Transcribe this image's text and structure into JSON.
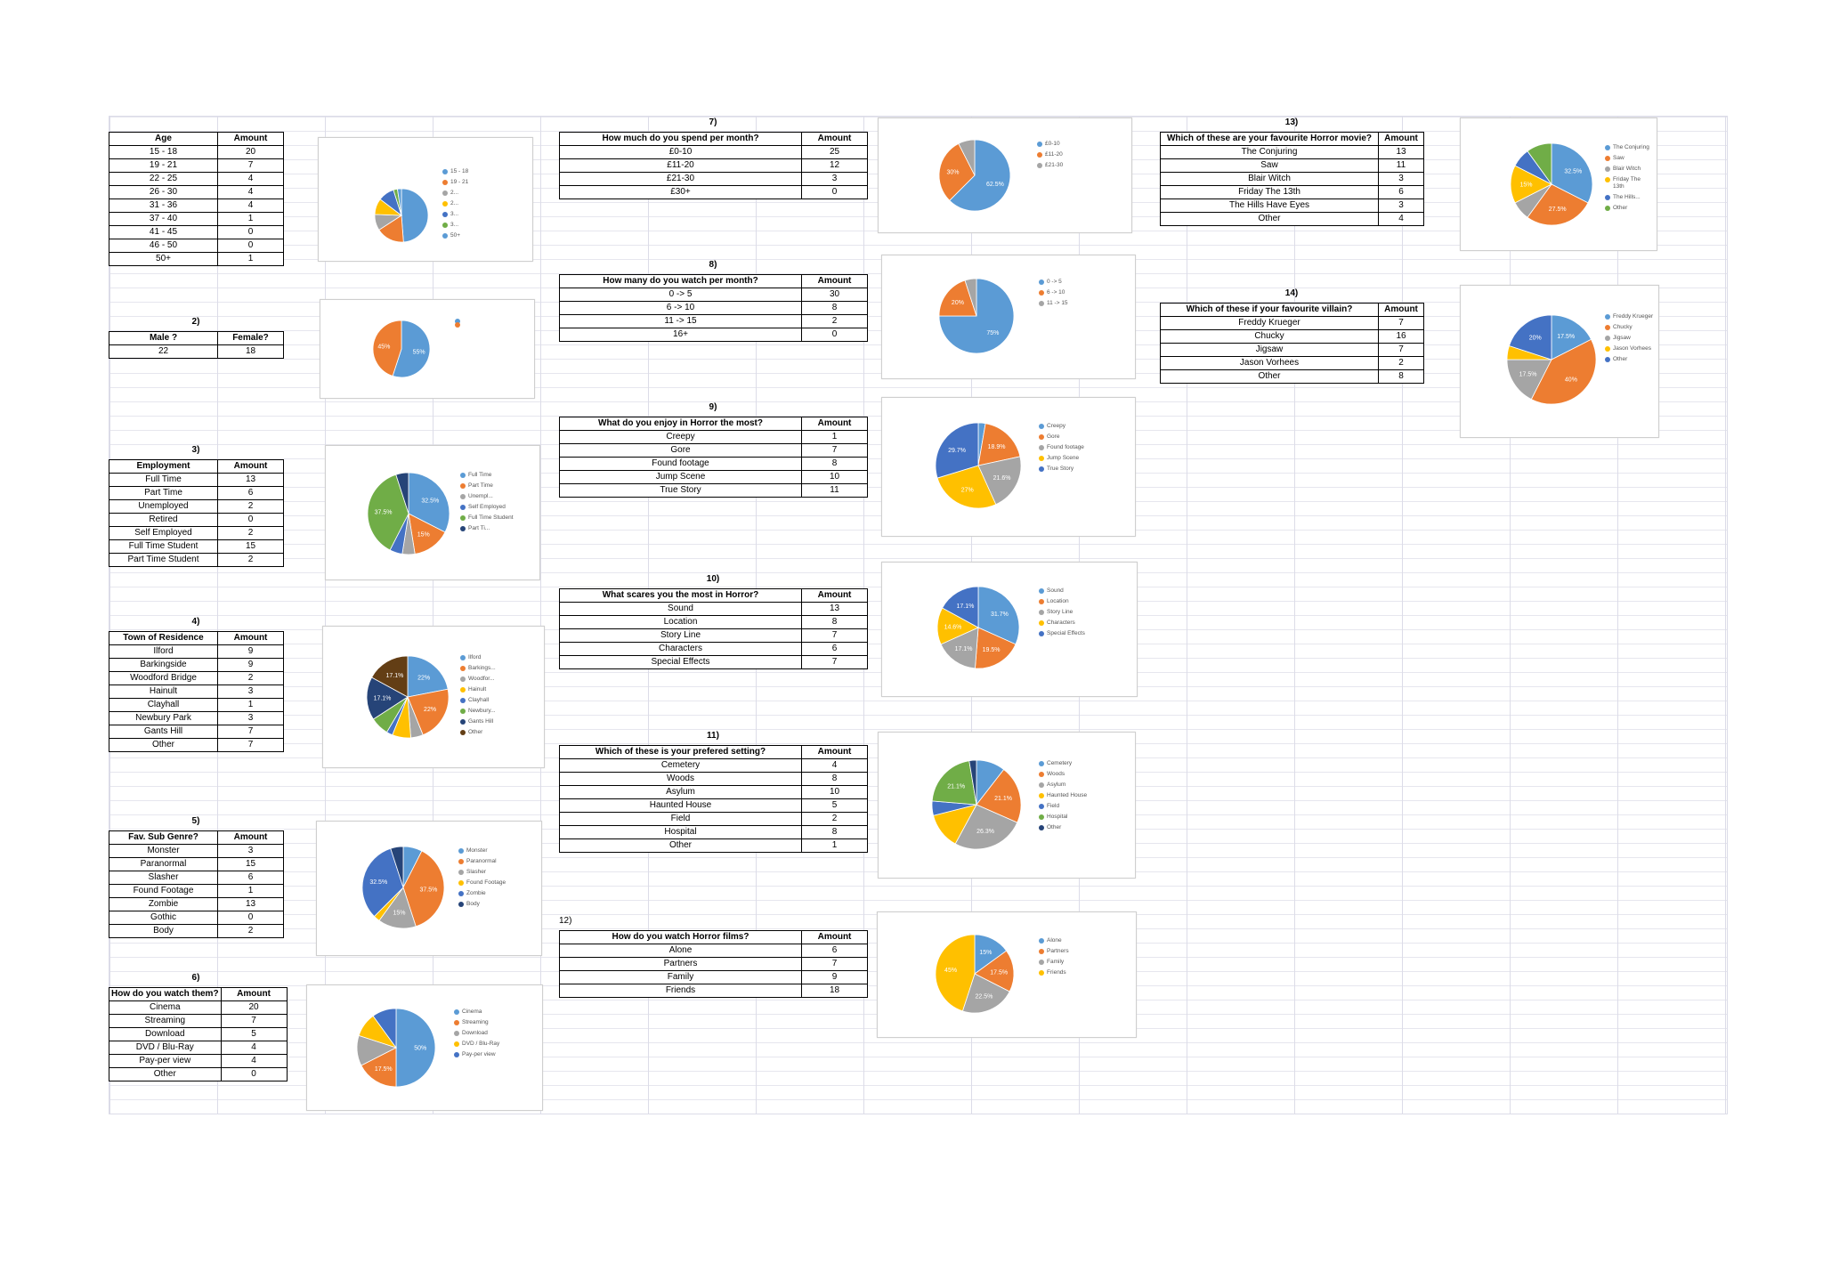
{
  "colors": [
    "#5b9bd5",
    "#ed7d31",
    "#a5a5a5",
    "#ffc000",
    "#4472c4",
    "#70ad47",
    "#264478",
    "#633e15"
  ],
  "sections": [
    {
      "key": "age",
      "label": "",
      "headers": [
        "Age",
        "Amount"
      ],
      "rows": [
        [
          "15 - 18",
          "20"
        ],
        [
          "19 - 21",
          "7"
        ],
        [
          "22 - 25",
          "4"
        ],
        [
          "26 - 30",
          "4"
        ],
        [
          "31 - 36",
          "4"
        ],
        [
          "37 - 40",
          "1"
        ],
        [
          "41 - 45",
          "0"
        ],
        [
          "46 - 50",
          "0"
        ],
        [
          "50+",
          "1"
        ]
      ]
    },
    {
      "key": "gender",
      "label": "2)",
      "headers": [
        "Male ?",
        "Female?"
      ],
      "rows": [
        [
          "22",
          "18"
        ]
      ]
    },
    {
      "key": "employment",
      "label": "3)",
      "headers": [
        "Employment",
        "Amount"
      ],
      "rows": [
        [
          "Full Time",
          "13"
        ],
        [
          "Part Time",
          "6"
        ],
        [
          "Unemployed",
          "2"
        ],
        [
          "Retired",
          "0"
        ],
        [
          "Self Employed",
          "2"
        ],
        [
          "Full Time Student",
          "15"
        ],
        [
          "Part Time Student",
          "2"
        ]
      ]
    },
    {
      "key": "town",
      "label": "4)",
      "headers": [
        "Town of Residence",
        "Amount"
      ],
      "rows": [
        [
          "Ilford",
          "9"
        ],
        [
          "Barkingside",
          "9"
        ],
        [
          "Woodford Bridge",
          "2"
        ],
        [
          "Hainult",
          "3"
        ],
        [
          "Clayhall",
          "1"
        ],
        [
          "Newbury Park",
          "3"
        ],
        [
          "Gants Hill",
          "7"
        ],
        [
          "Other",
          "7"
        ]
      ]
    },
    {
      "key": "subgenre",
      "label": "5)",
      "headers": [
        "Fav. Sub Genre?",
        "Amount"
      ],
      "rows": [
        [
          "Monster",
          "3"
        ],
        [
          "Paranormal",
          "15"
        ],
        [
          "Slasher",
          "6"
        ],
        [
          "Found Footage",
          "1"
        ],
        [
          "Zombie",
          "13"
        ],
        [
          "Gothic",
          "0"
        ],
        [
          "Body",
          "2"
        ]
      ]
    },
    {
      "key": "watchhow",
      "label": "6)",
      "headers": [
        "How do you watch them?",
        "Amount"
      ],
      "rows": [
        [
          "Cinema",
          "20"
        ],
        [
          "Streaming",
          "7"
        ],
        [
          "Download",
          "5"
        ],
        [
          "DVD / Blu-Ray",
          "4"
        ],
        [
          "Pay-per view",
          "4"
        ],
        [
          "Other",
          "0"
        ]
      ]
    },
    {
      "key": "spend",
      "label": "7)",
      "headers": [
        "How much do you spend per month?",
        "Amount"
      ],
      "rows": [
        [
          "£0-10",
          "25"
        ],
        [
          "£11-20",
          "12"
        ],
        [
          "£21-30",
          "3"
        ],
        [
          "£30+",
          "0"
        ]
      ]
    },
    {
      "key": "watchcount",
      "label": "8)",
      "headers": [
        "How many do you watch per month?",
        "Amount"
      ],
      "rows": [
        [
          "0 -> 5",
          "30"
        ],
        [
          "6 -> 10",
          "8"
        ],
        [
          "11 -> 15",
          "2"
        ],
        [
          "16+",
          "0"
        ]
      ]
    },
    {
      "key": "enjoy",
      "label": "9)",
      "headers": [
        "What do you enjoy in Horror the most?",
        "Amount"
      ],
      "rows": [
        [
          "Creepy",
          "1"
        ],
        [
          "Gore",
          "7"
        ],
        [
          "Found footage",
          "8"
        ],
        [
          "Jump Scene",
          "10"
        ],
        [
          "True Story",
          "11"
        ]
      ]
    },
    {
      "key": "scares",
      "label": "10)",
      "headers": [
        "What scares you the most in Horror?",
        "Amount"
      ],
      "rows": [
        [
          "Sound",
          "13"
        ],
        [
          "Location",
          "8"
        ],
        [
          "Story Line",
          "7"
        ],
        [
          "Characters",
          "6"
        ],
        [
          "Special Effects",
          "7"
        ]
      ]
    },
    {
      "key": "setting",
      "label": "11)",
      "headers": [
        "Which of these is your prefered setting?",
        "Amount"
      ],
      "rows": [
        [
          "Cemetery",
          "4"
        ],
        [
          "Woods",
          "8"
        ],
        [
          "Asylum",
          "10"
        ],
        [
          "Haunted House",
          "5"
        ],
        [
          "Field",
          "2"
        ],
        [
          "Hospital",
          "8"
        ],
        [
          "Other",
          "1"
        ]
      ]
    },
    {
      "key": "watchwith",
      "label": "12)",
      "headers": [
        "How do you watch Horror films?",
        "Amount"
      ],
      "rows": [
        [
          "Alone",
          "6"
        ],
        [
          "Partners",
          "7"
        ],
        [
          "Family",
          "9"
        ],
        [
          "Friends",
          "18"
        ]
      ]
    },
    {
      "key": "movie",
      "label": "13)",
      "headers": [
        "Which of these are your favourite Horror movie?",
        "Amount"
      ],
      "rows": [
        [
          "The Conjuring",
          "13"
        ],
        [
          "Saw",
          "11"
        ],
        [
          "Blair Witch",
          "3"
        ],
        [
          "Friday The 13th",
          "6"
        ],
        [
          "The Hills Have Eyes",
          "3"
        ],
        [
          "Other",
          "4"
        ]
      ]
    },
    {
      "key": "villain",
      "label": "14)",
      "headers": [
        "Which of these if your favourite villain?",
        "Amount"
      ],
      "rows": [
        [
          "Freddy Krueger",
          "7"
        ],
        [
          "Chucky",
          "16"
        ],
        [
          "Jigsaw",
          "7"
        ],
        [
          "Jason Vorhees",
          "2"
        ],
        [
          "Other",
          "8"
        ]
      ]
    }
  ],
  "chart_data": [
    {
      "key": "age",
      "type": "pie",
      "categories": [
        "15 - 18",
        "19 - 21",
        "22 - 25",
        "26 - 30",
        "31 - 36",
        "37 - 40",
        "41 - 45",
        "46 - 50",
        "50+"
      ],
      "values": [
        20,
        7,
        4,
        4,
        4,
        1,
        0,
        0,
        1
      ],
      "data_labels": [
        "",
        "",
        "",
        "",
        "",
        "",
        "",
        "",
        ""
      ],
      "legend": [
        "15 - 18",
        "19 - 21",
        "2...",
        "2...",
        "3...",
        "3...",
        "50+"
      ]
    },
    {
      "key": "gender",
      "type": "pie",
      "categories": [
        "Male ?",
        "Female?"
      ],
      "values": [
        22,
        18
      ],
      "data_labels": [
        "55%",
        "45%"
      ],
      "legend": [
        "",
        ""
      ]
    },
    {
      "key": "employment",
      "type": "pie",
      "categories": [
        "Full Time",
        "Part Time",
        "Unemployed",
        "Retired",
        "Self Employed",
        "Full Time Student",
        "Part Time Student"
      ],
      "values": [
        13,
        6,
        2,
        0,
        2,
        15,
        2
      ],
      "data_labels": [
        "32.5%",
        "15%",
        "",
        "",
        "",
        "37.5%",
        ""
      ],
      "legend": [
        "Full Time",
        "Part Time",
        "Unempl...",
        "Self Employed",
        "Full Time Student",
        "Part Ti..."
      ]
    },
    {
      "key": "town",
      "type": "pie",
      "categories": [
        "Ilford",
        "Barkingside",
        "Woodford Bridge",
        "Hainult",
        "Clayhall",
        "Newbury Park",
        "Gants Hill",
        "Other"
      ],
      "values": [
        9,
        9,
        2,
        3,
        1,
        3,
        7,
        7
      ],
      "data_labels": [
        "22%",
        "22%",
        "",
        "",
        "",
        "",
        "17.1%",
        "17.1%"
      ],
      "legend": [
        "Ilford",
        "Barkings...",
        "Woodfor...",
        "Hainult",
        "Clayhall",
        "Newbury...",
        "Gants Hill",
        "Other"
      ]
    },
    {
      "key": "subgenre",
      "type": "pie",
      "categories": [
        "Monster",
        "Paranormal",
        "Slasher",
        "Found Footage",
        "Zombie",
        "Gothic",
        "Body"
      ],
      "values": [
        3,
        15,
        6,
        1,
        13,
        0,
        2
      ],
      "data_labels": [
        "",
        "37.5%",
        "15%",
        "",
        "32.5%",
        "",
        ""
      ],
      "legend": [
        "Monster",
        "Paranormal",
        "Slasher",
        "Found Footage",
        "Zombie",
        "Body"
      ]
    },
    {
      "key": "watchhow",
      "type": "pie",
      "categories": [
        "Cinema",
        "Streaming",
        "Download",
        "DVD / Blu-Ray",
        "Pay-per view",
        "Other"
      ],
      "values": [
        20,
        7,
        5,
        4,
        4,
        0
      ],
      "data_labels": [
        "50%",
        "17.5%",
        "",
        "",
        "",
        ""
      ],
      "legend": [
        "Cinema",
        "Streaming",
        "Download",
        "DVD / Blu-Ray",
        "Pay-per view"
      ]
    },
    {
      "key": "spend",
      "type": "pie",
      "categories": [
        "£0-10",
        "£11-20",
        "£21-30"
      ],
      "values": [
        25,
        12,
        3
      ],
      "data_labels": [
        "62.5%",
        "30%",
        ""
      ],
      "legend": [
        "£0-10",
        "£11-20",
        "£21-30"
      ]
    },
    {
      "key": "watchcount",
      "type": "pie",
      "categories": [
        "0 -> 5",
        "6 -> 10",
        "11 -> 15"
      ],
      "values": [
        30,
        8,
        2
      ],
      "data_labels": [
        "75%",
        "20%",
        ""
      ],
      "legend": [
        "0 -> 5",
        "6 -> 10",
        "11 -> 15"
      ]
    },
    {
      "key": "enjoy",
      "type": "pie",
      "categories": [
        "Creepy",
        "Gore",
        "Found footage",
        "Jump Scene",
        "True Story"
      ],
      "values": [
        1,
        7,
        8,
        10,
        11
      ],
      "data_labels": [
        "",
        "18.9%",
        "21.6%",
        "27%",
        "29.7%"
      ],
      "legend": [
        "Creepy",
        "Gore",
        "Found footage",
        "Jump Scene",
        "True Story"
      ]
    },
    {
      "key": "scares",
      "type": "pie",
      "categories": [
        "Sound",
        "Location",
        "Story Line",
        "Characters",
        "Special Effects"
      ],
      "values": [
        13,
        8,
        7,
        6,
        7
      ],
      "data_labels": [
        "31.7%",
        "19.5%",
        "17.1%",
        "14.6%",
        "17.1%"
      ],
      "legend": [
        "Sound",
        "Location",
        "Story Line",
        "Characters",
        "Special Effects"
      ]
    },
    {
      "key": "setting",
      "type": "pie",
      "categories": [
        "Cemetery",
        "Woods",
        "Asylum",
        "Haunted House",
        "Field",
        "Hospital",
        "Other"
      ],
      "values": [
        4,
        8,
        10,
        5,
        2,
        8,
        1
      ],
      "data_labels": [
        "",
        "21.1%",
        "26.3%",
        "",
        "",
        "21.1%",
        ""
      ],
      "legend": [
        "Cemetery",
        "Woods",
        "Asylum",
        "Haunted House",
        "Field",
        "Hospital",
        "Other"
      ]
    },
    {
      "key": "watchwith",
      "type": "pie",
      "categories": [
        "Alone",
        "Partners",
        "Family",
        "Friends"
      ],
      "values": [
        6,
        7,
        9,
        18
      ],
      "data_labels": [
        "15%",
        "17.5%",
        "22.5%",
        "45%"
      ],
      "legend": [
        "Alone",
        "Partners",
        "Family",
        "Friends"
      ]
    },
    {
      "key": "movie",
      "type": "pie",
      "categories": [
        "The Conjuring",
        "Saw",
        "Blair Witch",
        "Friday The 13th",
        "The Hills Have Eyes",
        "Other"
      ],
      "values": [
        13,
        11,
        3,
        6,
        3,
        4
      ],
      "data_labels": [
        "32.5%",
        "27.5%",
        "",
        "15%",
        "",
        ""
      ],
      "legend": [
        "The Conjuring",
        "Saw",
        "Blair Witch",
        "Friday The 13th",
        "The Hills...",
        "Other"
      ]
    },
    {
      "key": "villain",
      "type": "pie",
      "categories": [
        "Freddy Krueger",
        "Chucky",
        "Jigsaw",
        "Jason Vorhees",
        "Other"
      ],
      "values": [
        7,
        16,
        7,
        2,
        8
      ],
      "data_labels": [
        "17.5%",
        "40%",
        "17.5%",
        "",
        "20%"
      ],
      "legend": [
        "Freddy Krueger",
        "Chucky",
        "Jigsaw",
        "Jason Vorhees",
        "Other"
      ]
    }
  ]
}
